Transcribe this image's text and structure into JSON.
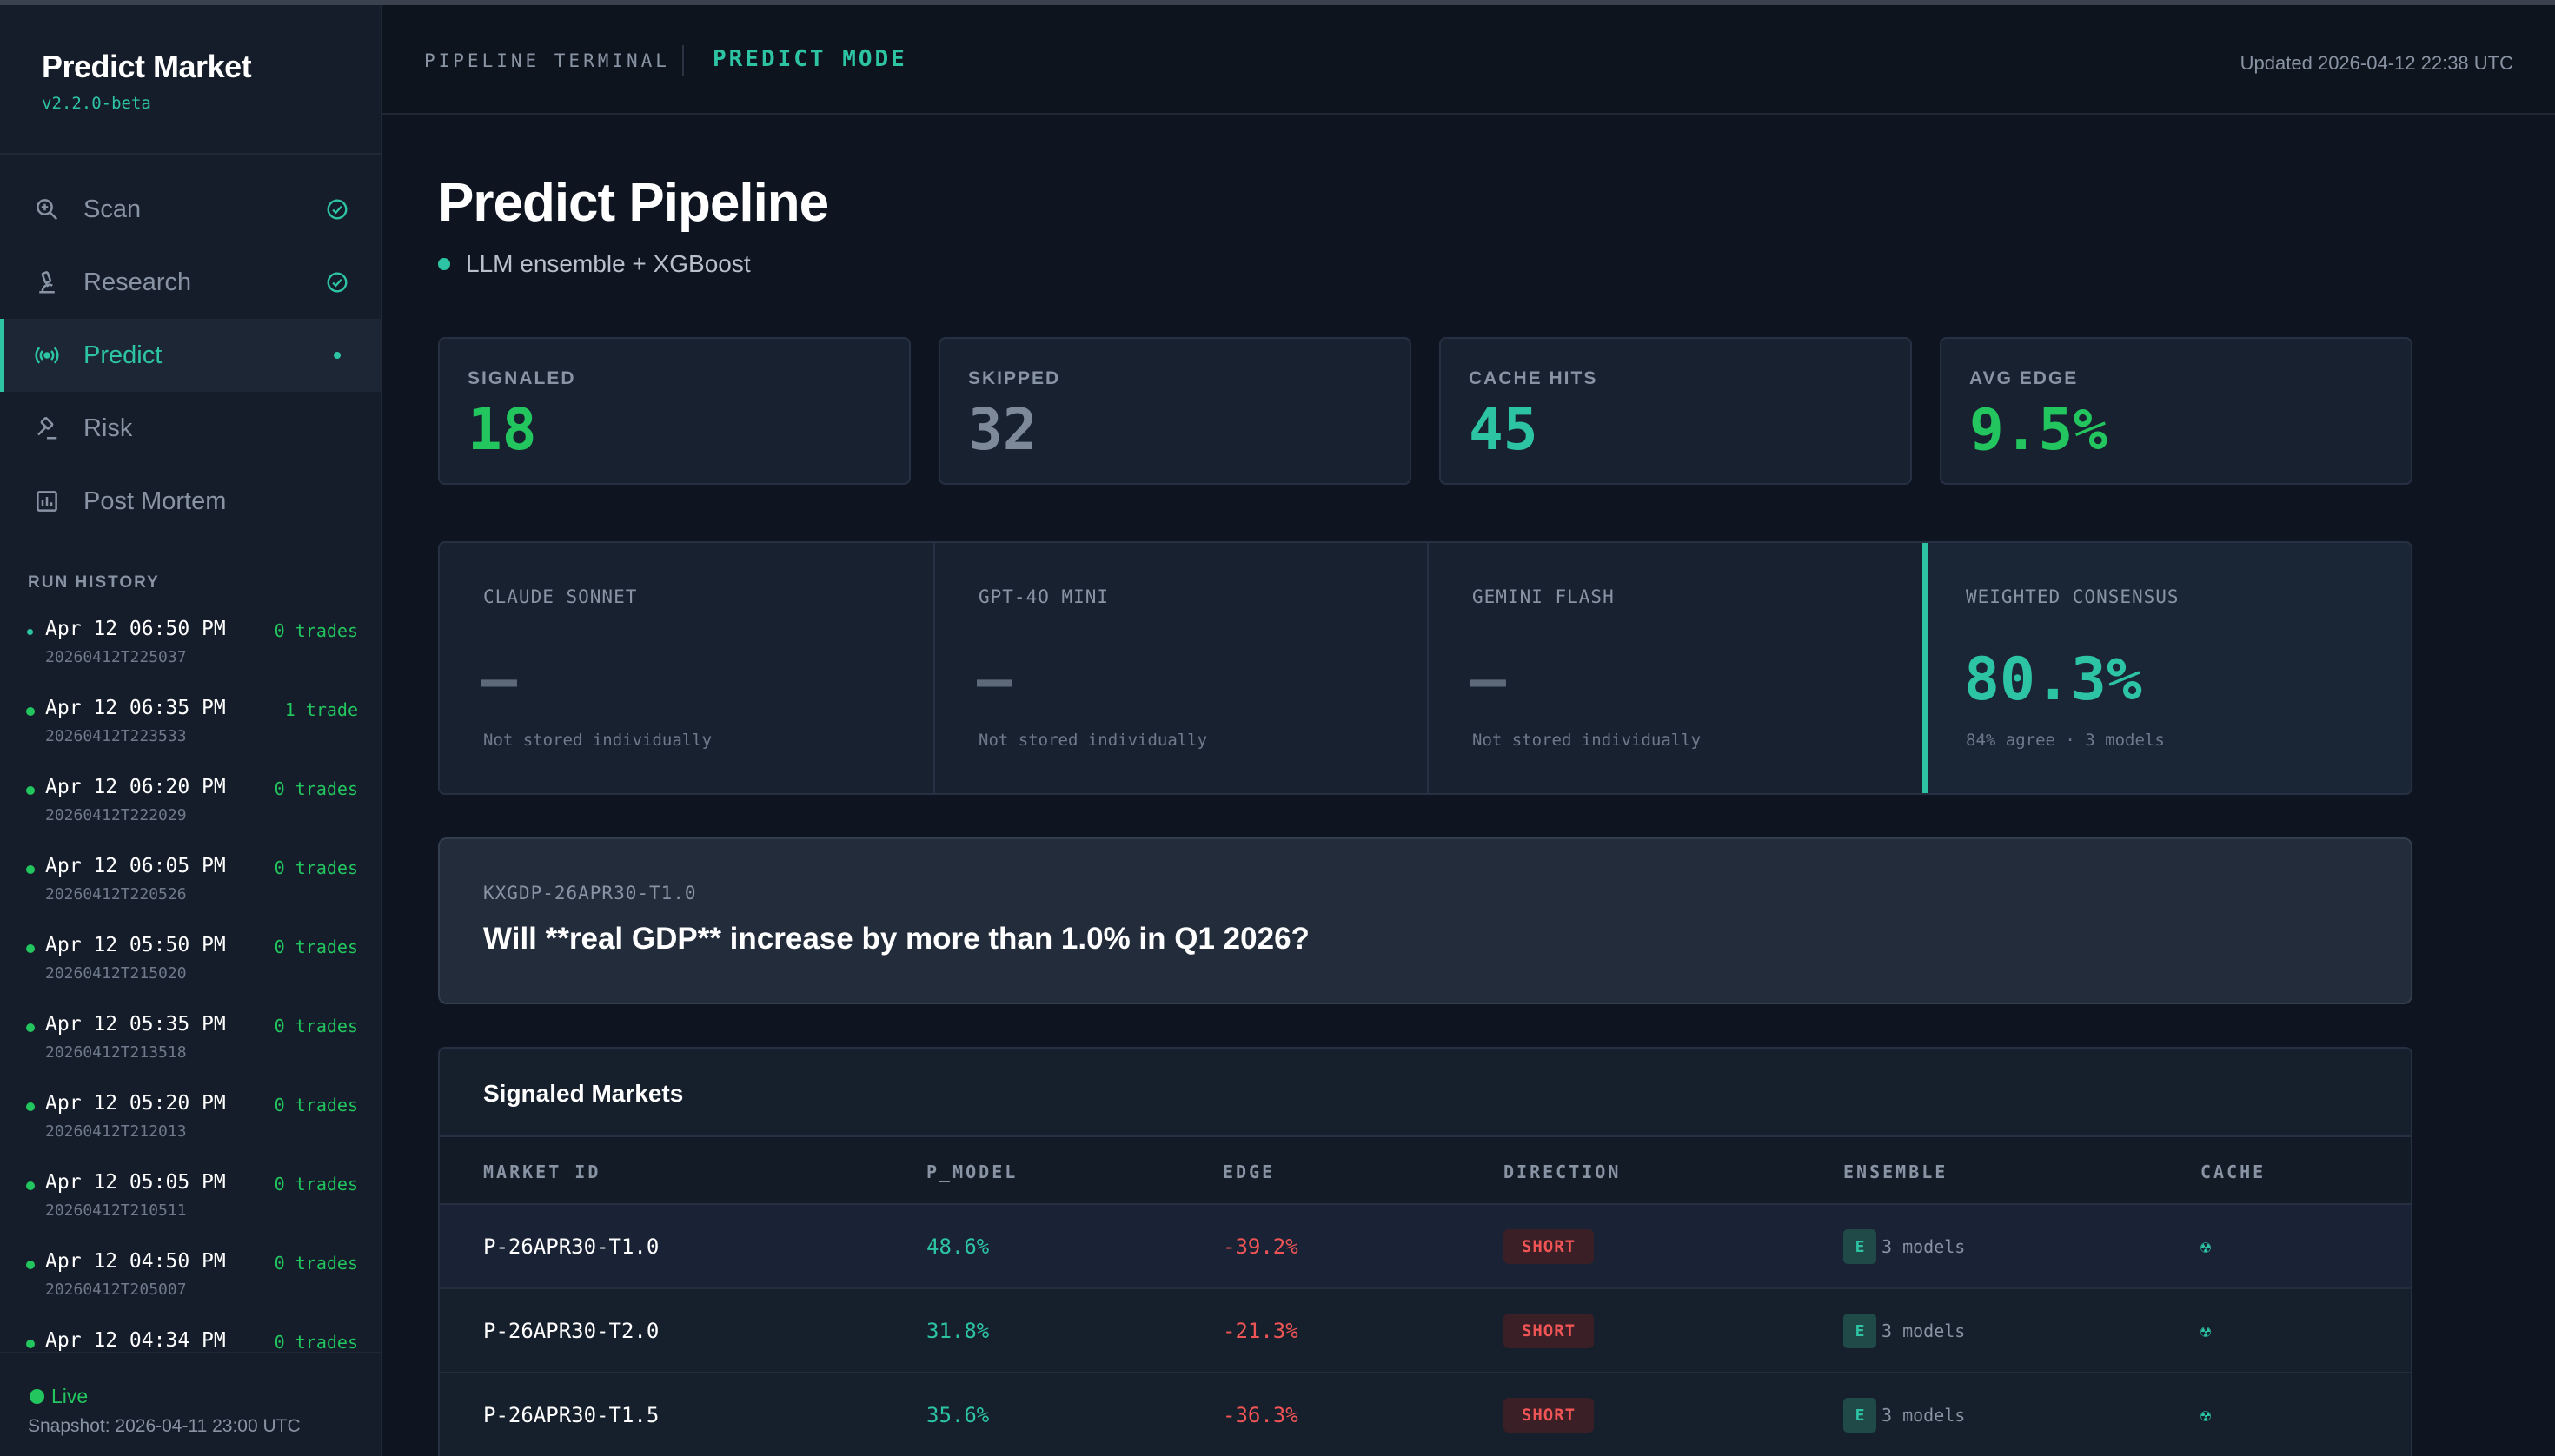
{
  "sidebar": {
    "brand_title": "Predict Market",
    "brand_version": "v2.2.0-beta",
    "nav": [
      {
        "label": "Scan",
        "icon": "scan-icon",
        "status": "done"
      },
      {
        "label": "Research",
        "icon": "microscope-icon",
        "status": "done"
      },
      {
        "label": "Predict",
        "icon": "broadcast-icon",
        "status": "active"
      },
      {
        "label": "Risk",
        "icon": "gavel-icon",
        "status": "none"
      },
      {
        "label": "Post Mortem",
        "icon": "chart-box-icon",
        "status": "none"
      }
    ],
    "run_history_title": "RUN HISTORY",
    "runs": [
      {
        "time": "Apr 12 06:50 PM",
        "id": "20260412T225037",
        "trades": "0 trades"
      },
      {
        "time": "Apr 12 06:35 PM",
        "id": "20260412T223533",
        "trades": "1 trade"
      },
      {
        "time": "Apr 12 06:20 PM",
        "id": "20260412T222029",
        "trades": "0 trades"
      },
      {
        "time": "Apr 12 06:05 PM",
        "id": "20260412T220526",
        "trades": "0 trades"
      },
      {
        "time": "Apr 12 05:50 PM",
        "id": "20260412T215020",
        "trades": "0 trades"
      },
      {
        "time": "Apr 12 05:35 PM",
        "id": "20260412T213518",
        "trades": "0 trades"
      },
      {
        "time": "Apr 12 05:20 PM",
        "id": "20260412T212013",
        "trades": "0 trades"
      },
      {
        "time": "Apr 12 05:05 PM",
        "id": "20260412T210511",
        "trades": "0 trades"
      },
      {
        "time": "Apr 12 04:50 PM",
        "id": "20260412T205007",
        "trades": "0 trades"
      },
      {
        "time": "Apr 12 04:34 PM",
        "id": "",
        "trades": "0 trades"
      }
    ],
    "live_label": "Live",
    "snapshot": "Snapshot: 2026-04-11 23:00 UTC"
  },
  "header": {
    "terminal": "PIPELINE TERMINAL",
    "mode": "PREDICT MODE",
    "updated": "Updated 2026-04-12 22:38 UTC"
  },
  "page": {
    "title": "Predict Pipeline",
    "subtitle": "LLM ensemble + XGBoost"
  },
  "stats": [
    {
      "label": "SIGNALED",
      "value": "18",
      "color": "#22c55e"
    },
    {
      "label": "SKIPPED",
      "value": "32",
      "color": "#7d8899"
    },
    {
      "label": "CACHE HITS",
      "value": "45",
      "color": "#2dc4a4"
    },
    {
      "label": "AVG EDGE",
      "value": "9.5%",
      "color": "#22c55e"
    }
  ],
  "models": [
    {
      "label": "CLAUDE SONNET",
      "value": "—",
      "note": "Not stored individually"
    },
    {
      "label": "GPT-4O MINI",
      "value": "—",
      "note": "Not stored individually"
    },
    {
      "label": "GEMINI FLASH",
      "value": "—",
      "note": "Not stored individually"
    }
  ],
  "consensus": {
    "label": "WEIGHTED CONSENSUS",
    "value": "80.3%",
    "note": "84% agree · 3 models",
    "color": "#2dc4a4"
  },
  "market": {
    "ticker": "KXGDP-26APR30-T1.0",
    "question": "Will **real GDP** increase by more than 1.0% in Q1 2026?"
  },
  "signaled": {
    "title": "Signaled Markets",
    "columns": [
      "MARKET ID",
      "P_MODEL",
      "EDGE",
      "DIRECTION",
      "ENSEMBLE",
      "CACHE"
    ],
    "rows": [
      {
        "id": "P-26APR30-T1.0",
        "p_model": "48.6%",
        "edge": "-39.2%",
        "direction": "SHORT",
        "ensemble_badge": "E",
        "ensemble": "3 models",
        "cache": "☢"
      },
      {
        "id": "P-26APR30-T2.0",
        "p_model": "31.8%",
        "edge": "-21.3%",
        "direction": "SHORT",
        "ensemble_badge": "E",
        "ensemble": "3 models",
        "cache": "☢"
      },
      {
        "id": "P-26APR30-T1.5",
        "p_model": "35.6%",
        "edge": "-36.3%",
        "direction": "SHORT",
        "ensemble_badge": "E",
        "ensemble": "3 models",
        "cache": "☢"
      }
    ]
  }
}
